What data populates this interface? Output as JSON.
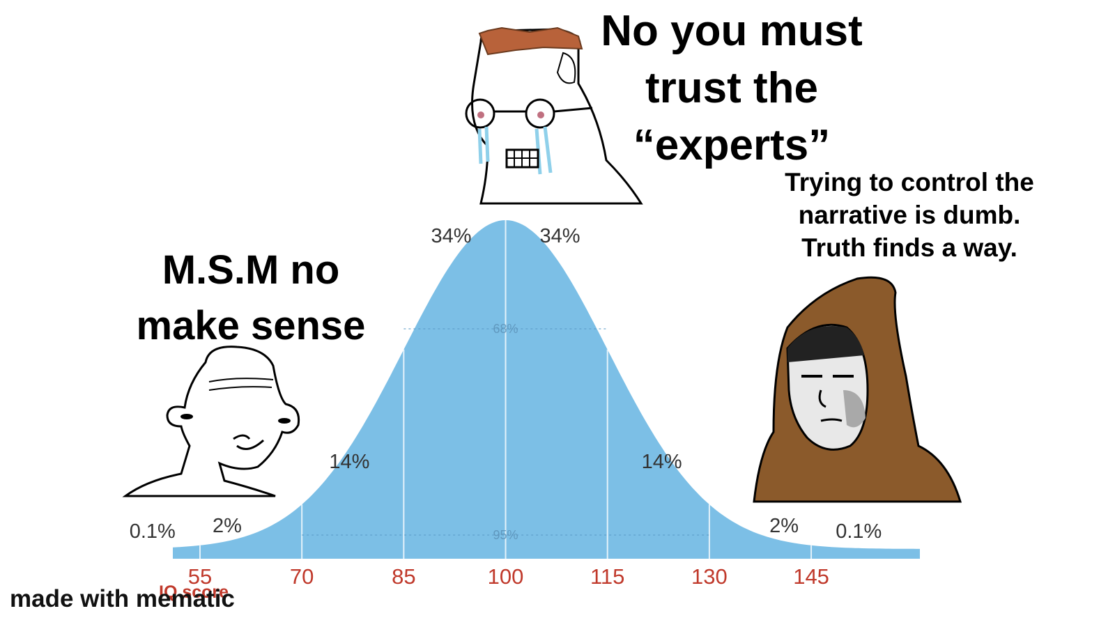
{
  "captions": {
    "top": "No you must\ntrust the\n“experts”",
    "left": "M.S.M no\nmake sense",
    "right": "Trying to control the\nnarrative is dumb.\nTruth finds a way."
  },
  "watermark": "made with mematic",
  "chart_data": {
    "type": "area",
    "xlabel": "IQ score",
    "mean": 100,
    "sd": 15,
    "x_ticks": [
      55,
      70,
      85,
      100,
      115,
      130,
      145
    ],
    "segment_labels": [
      "0.1%",
      "2%",
      "14%",
      "34%",
      "34%",
      "14%",
      "2%",
      "0.1%"
    ],
    "range_labels": [
      {
        "label": "68%",
        "from": 85,
        "to": 115
      },
      {
        "label": "95%",
        "from": 70,
        "to": 130
      }
    ],
    "fill_color": "#7cbfe6",
    "tick_label_color": "#c0392b"
  },
  "characters": {
    "top": {
      "icon": "crying-wojak-glasses-icon",
      "hair_color": "#b8623a",
      "tear_color": "#8fd0ea"
    },
    "left": {
      "icon": "grinning-wojak-icon"
    },
    "right": {
      "icon": "hooded-wojak-icon",
      "hood_color": "#8b5a2b"
    }
  }
}
